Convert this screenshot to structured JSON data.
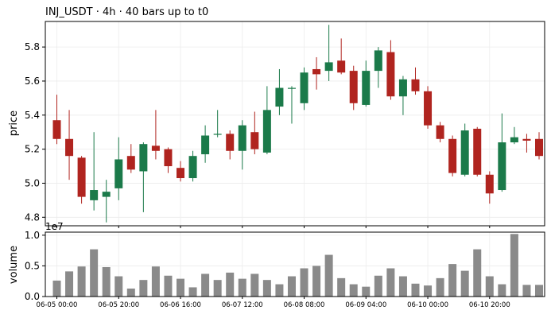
{
  "title": "INJ_USDT  ·  4h  ·  40 bars up to t0",
  "colors": {
    "up": "#1b7a4a",
    "down": "#b0241f",
    "volume": "#8a8a8a",
    "grid": "#ececec"
  },
  "chart_data": [
    {
      "type": "candlestick",
      "ylabel": "price",
      "ylim": [
        4.75,
        5.95
      ],
      "yticks": [
        4.8,
        5.0,
        5.2,
        5.4,
        5.6,
        5.8
      ],
      "ytick_labels": [
        "4.8",
        "5.0",
        "5.2",
        "5.4",
        "5.6",
        "5.8"
      ],
      "grid": true,
      "candles": [
        {
          "o": 5.37,
          "h": 5.52,
          "l": 5.23,
          "c": 5.26
        },
        {
          "o": 5.26,
          "h": 5.43,
          "l": 5.02,
          "c": 5.16
        },
        {
          "o": 5.15,
          "h": 5.16,
          "l": 4.88,
          "c": 4.92
        },
        {
          "o": 4.9,
          "h": 5.3,
          "l": 4.84,
          "c": 4.96
        },
        {
          "o": 4.92,
          "h": 5.02,
          "l": 4.77,
          "c": 4.95
        },
        {
          "o": 4.97,
          "h": 5.27,
          "l": 4.9,
          "c": 5.14
        },
        {
          "o": 5.16,
          "h": 5.23,
          "l": 5.06,
          "c": 5.08
        },
        {
          "o": 5.07,
          "h": 5.24,
          "l": 4.83,
          "c": 5.23
        },
        {
          "o": 5.22,
          "h": 5.43,
          "l": 5.14,
          "c": 5.19
        },
        {
          "o": 5.2,
          "h": 5.21,
          "l": 5.06,
          "c": 5.1
        },
        {
          "o": 5.09,
          "h": 5.13,
          "l": 5.01,
          "c": 5.03
        },
        {
          "o": 5.03,
          "h": 5.19,
          "l": 5.01,
          "c": 5.16
        },
        {
          "o": 5.17,
          "h": 5.34,
          "l": 5.12,
          "c": 5.28
        },
        {
          "o": 5.29,
          "h": 5.43,
          "l": 5.27,
          "c": 5.29
        },
        {
          "o": 5.29,
          "h": 5.31,
          "l": 5.14,
          "c": 5.19
        },
        {
          "o": 5.19,
          "h": 5.37,
          "l": 5.08,
          "c": 5.34
        },
        {
          "o": 5.3,
          "h": 5.42,
          "l": 5.17,
          "c": 5.2
        },
        {
          "o": 5.18,
          "h": 5.57,
          "l": 5.17,
          "c": 5.43
        },
        {
          "o": 5.45,
          "h": 5.67,
          "l": 5.4,
          "c": 5.56
        },
        {
          "o": 5.56,
          "h": 5.57,
          "l": 5.35,
          "c": 5.56
        },
        {
          "o": 5.47,
          "h": 5.68,
          "l": 5.43,
          "c": 5.65
        },
        {
          "o": 5.67,
          "h": 5.74,
          "l": 5.55,
          "c": 5.64
        },
        {
          "o": 5.66,
          "h": 5.93,
          "l": 5.6,
          "c": 5.71
        },
        {
          "o": 5.72,
          "h": 5.85,
          "l": 5.64,
          "c": 5.65
        },
        {
          "o": 5.66,
          "h": 5.69,
          "l": 5.43,
          "c": 5.47
        },
        {
          "o": 5.46,
          "h": 5.72,
          "l": 5.45,
          "c": 5.66
        },
        {
          "o": 5.66,
          "h": 5.8,
          "l": 5.56,
          "c": 5.78
        },
        {
          "o": 5.77,
          "h": 5.84,
          "l": 5.49,
          "c": 5.51
        },
        {
          "o": 5.51,
          "h": 5.63,
          "l": 5.4,
          "c": 5.61
        },
        {
          "o": 5.61,
          "h": 5.68,
          "l": 5.52,
          "c": 5.54
        },
        {
          "o": 5.54,
          "h": 5.57,
          "l": 5.32,
          "c": 5.34
        },
        {
          "o": 5.34,
          "h": 5.36,
          "l": 5.24,
          "c": 5.26
        },
        {
          "o": 5.26,
          "h": 5.28,
          "l": 5.04,
          "c": 5.06
        },
        {
          "o": 5.05,
          "h": 5.35,
          "l": 5.04,
          "c": 5.31
        },
        {
          "o": 5.32,
          "h": 5.33,
          "l": 5.04,
          "c": 5.05
        },
        {
          "o": 5.05,
          "h": 5.07,
          "l": 4.88,
          "c": 4.94
        },
        {
          "o": 4.96,
          "h": 5.41,
          "l": 4.95,
          "c": 5.24
        },
        {
          "o": 5.24,
          "h": 5.33,
          "l": 5.23,
          "c": 5.27
        },
        {
          "o": 5.26,
          "h": 5.29,
          "l": 5.18,
          "c": 5.25
        },
        {
          "o": 5.26,
          "h": 5.3,
          "l": 5.14,
          "c": 5.16
        }
      ]
    },
    {
      "type": "bar",
      "ylabel": "volume",
      "scale_label": "1e7",
      "ylim": [
        0,
        1.05
      ],
      "yticks": [
        0.0,
        0.5,
        1.0
      ],
      "ytick_labels": [
        "0.0",
        "0.5",
        "1.0"
      ],
      "values": [
        0.26,
        0.41,
        0.49,
        0.77,
        0.48,
        0.33,
        0.13,
        0.27,
        0.49,
        0.34,
        0.29,
        0.15,
        0.37,
        0.27,
        0.39,
        0.29,
        0.37,
        0.27,
        0.2,
        0.33,
        0.46,
        0.5,
        0.68,
        0.3,
        0.2,
        0.16,
        0.34,
        0.46,
        0.33,
        0.21,
        0.18,
        0.3,
        0.53,
        0.42,
        0.77,
        0.33,
        0.2,
        1.02,
        0.19,
        0.19
      ]
    }
  ],
  "x_axis": {
    "tick_positions": [
      0,
      5,
      10,
      15,
      20,
      25,
      30,
      35
    ],
    "tick_labels": [
      "06-05 00:00",
      "06-05 20:00",
      "06-06 16:00",
      "06-07 12:00",
      "06-08 08:00",
      "06-09 04:00",
      "06-10 00:00",
      "06-10 20:00"
    ]
  }
}
